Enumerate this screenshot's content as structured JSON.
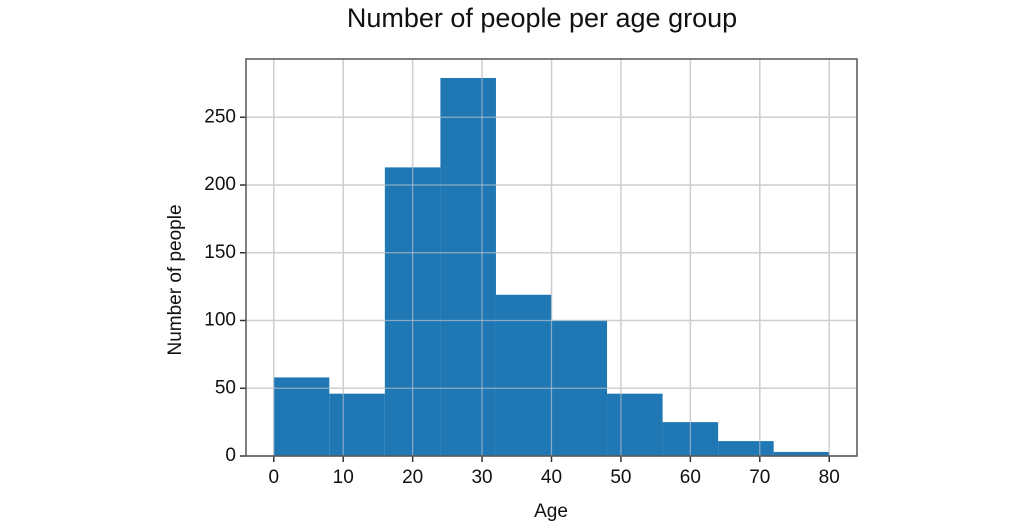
{
  "chart_data": {
    "type": "histogram",
    "title": "Number of people per age group",
    "x_label": "Age",
    "y_label": "Number of people",
    "bins": [
      0,
      8,
      16,
      24,
      32,
      40,
      48,
      56,
      64,
      72,
      80
    ],
    "values": [
      58,
      46,
      213,
      279,
      119,
      100,
      46,
      25,
      11,
      3
    ],
    "color": "#1f77b4",
    "xlim": [
      -4,
      84
    ],
    "xticks": [
      0,
      10,
      20,
      30,
      40,
      50,
      60,
      70,
      80
    ],
    "ylim": [
      0,
      293
    ],
    "yticks": [
      0,
      50,
      100,
      150,
      200,
      250
    ],
    "grid": true
  }
}
